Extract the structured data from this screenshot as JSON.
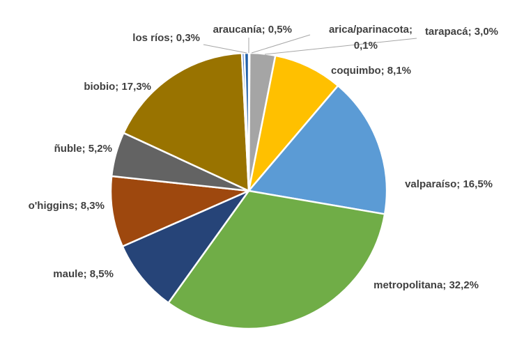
{
  "chart_data": {
    "type": "pie",
    "title": "",
    "slices": [
      {
        "label": "arica/parinacota",
        "value": 0.1,
        "label_text": "arica/parinacota; 0,1%",
        "color": "#7f7f7f"
      },
      {
        "label": "tarapacá",
        "value": 3.0,
        "label_text": "tarapacá; 3,0%",
        "color": "#a5a5a5"
      },
      {
        "label": "coquimbo",
        "value": 8.1,
        "label_text": "coquimbo; 8,1%",
        "color": "#ffc000"
      },
      {
        "label": "valparaíso",
        "value": 16.5,
        "label_text": "valparaíso; 16,5%",
        "color": "#5b9bd5"
      },
      {
        "label": "metropolitana",
        "value": 32.2,
        "label_text": "metropolitana; 32,2%",
        "color": "#70ad47"
      },
      {
        "label": "maule",
        "value": 8.5,
        "label_text": "maule; 8,5%",
        "color": "#264478"
      },
      {
        "label": "o'higgins",
        "value": 8.3,
        "label_text": "o'higgins; 8,3%",
        "color": "#9e480e"
      },
      {
        "label": "ñuble",
        "value": 5.2,
        "label_text": "ñuble; 5,2%",
        "color": "#636363"
      },
      {
        "label": "biobio",
        "value": 17.3,
        "label_text": "biobio; 17,3%",
        "color": "#997300"
      },
      {
        "label": "los ríos",
        "value": 0.3,
        "label_text": "los ríos; 0,3%",
        "color": "#4472c4"
      },
      {
        "label": "araucanía",
        "value": 0.5,
        "label_text": "araucanía; 0,5%",
        "color": "#1f5fa8"
      }
    ],
    "legend": "none",
    "start_angle_deg": 0,
    "direction": "clockwise"
  }
}
